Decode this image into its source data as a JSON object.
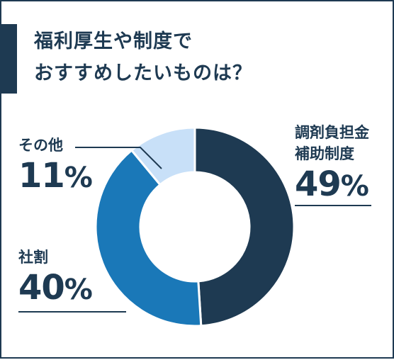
{
  "title": {
    "line1": "福利厚生や制度で",
    "line2": "おすすめしたいものは？"
  },
  "colors": {
    "frame": "#1e3a52",
    "text": "#1e3a52",
    "leader_line": "#1e3a52"
  },
  "chart_data": {
    "type": "pie",
    "style": "donut",
    "title": "福利厚生や制度でおすすめしたいものは？",
    "unit": "%",
    "slices": [
      {
        "label_line1": "調剤負担金",
        "label_line2": "補助制度",
        "value": 49,
        "display": "49",
        "color": "#1e3a52"
      },
      {
        "label_line1": "社割",
        "label_line2": "",
        "value": 40,
        "display": "40",
        "color": "#1a78b8"
      },
      {
        "label_line1": "その他",
        "label_line2": "",
        "value": 11,
        "display": "11",
        "color": "#c8e0f8"
      }
    ]
  }
}
